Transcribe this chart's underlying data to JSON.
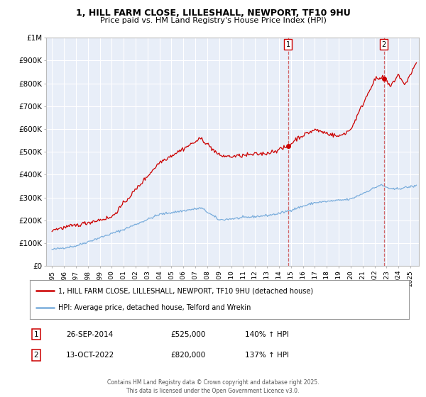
{
  "title": "1, HILL FARM CLOSE, LILLESHALL, NEWPORT, TF10 9HU",
  "subtitle": "Price paid vs. HM Land Registry's House Price Index (HPI)",
  "red_label": "1, HILL FARM CLOSE, LILLESHALL, NEWPORT, TF10 9HU (detached house)",
  "blue_label": "HPI: Average price, detached house, Telford and Wrekin",
  "red_color": "#cc0000",
  "blue_color": "#7aaddc",
  "annotation1_date": "26-SEP-2014",
  "annotation1_price": "£525,000",
  "annotation1_hpi": "140% ↑ HPI",
  "annotation2_date": "13-OCT-2022",
  "annotation2_price": "£820,000",
  "annotation2_hpi": "137% ↑ HPI",
  "vline1_x": 2014.75,
  "vline2_x": 2022.79,
  "marker1_red_y": 525000,
  "marker2_red_y": 820000,
  "copyright": "Contains HM Land Registry data © Crown copyright and database right 2025.\nThis data is licensed under the Open Government Licence v3.0.",
  "ylim": [
    0,
    1000000
  ],
  "xlim_left": 1994.5,
  "xlim_right": 2025.7,
  "background_color": "#e8eef8",
  "grid_color": "#ffffff"
}
